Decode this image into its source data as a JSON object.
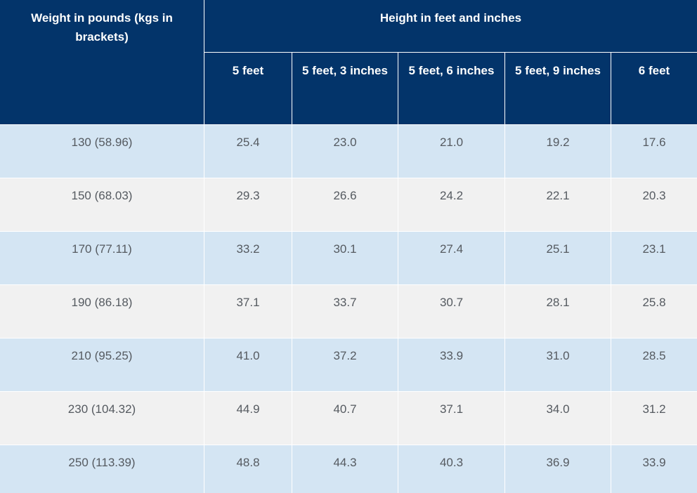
{
  "header": {
    "weight_label": "Weight in pounds (kgs in brackets)",
    "height_label": "Height in feet and inches",
    "heights": [
      "5 feet",
      "5 feet, 3 inches",
      "5 feet, 6 inches",
      "5 feet, 9 inches",
      "6 feet"
    ]
  },
  "rows": [
    {
      "weight": "130 (58.96)",
      "values": [
        "25.4",
        "23.0",
        "21.0",
        "19.2",
        "17.6"
      ]
    },
    {
      "weight": "150 (68.03)",
      "values": [
        "29.3",
        "26.6",
        "24.2",
        "22.1",
        "20.3"
      ]
    },
    {
      "weight": "170 (77.11)",
      "values": [
        "33.2",
        "30.1",
        "27.4",
        "25.1",
        "23.1"
      ]
    },
    {
      "weight": "190 (86.18)",
      "values": [
        "37.1",
        "33.7",
        "30.7",
        "28.1",
        "25.8"
      ]
    },
    {
      "weight": "210 (95.25)",
      "values": [
        "41.0",
        "37.2",
        "33.9",
        "31.0",
        "28.5"
      ]
    },
    {
      "weight": "230 (104.32)",
      "values": [
        "44.9",
        "40.7",
        "37.1",
        "34.0",
        "31.2"
      ]
    },
    {
      "weight": "250 (113.39)",
      "values": [
        "48.8",
        "44.3",
        "40.3",
        "36.9",
        "33.9"
      ]
    }
  ],
  "colors": {
    "header_bg": "#03346a",
    "row_blue": "#d4e5f3",
    "row_gray": "#f1f1f1",
    "text": "#555a60"
  }
}
